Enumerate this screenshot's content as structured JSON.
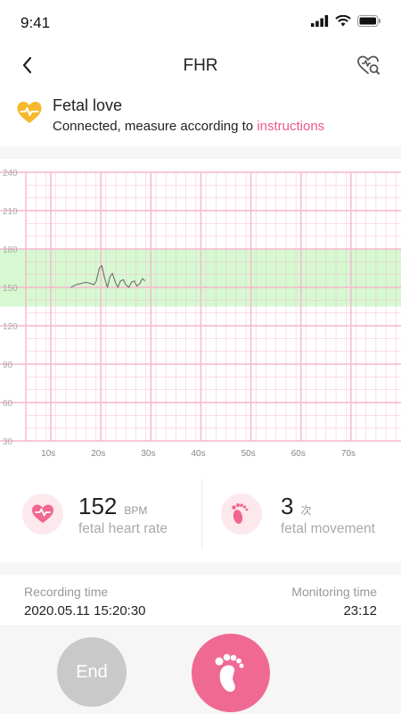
{
  "status_bar": {
    "time": "9:41"
  },
  "nav": {
    "title": "FHR"
  },
  "device": {
    "name": "Fetal love",
    "status_prefix": "Connected, measure according to ",
    "status_link": "instructions"
  },
  "chart_data": {
    "type": "line",
    "y_ticks": [
      240,
      210,
      180,
      150,
      120,
      90,
      60,
      30
    ],
    "x_ticks": [
      "10s",
      "20s",
      "30s",
      "40s",
      "50s",
      "60s",
      "70s"
    ],
    "ylim": [
      30,
      240
    ],
    "normal_band": [
      135,
      180
    ],
    "series": [
      {
        "x": [
          14,
          15,
          16,
          17,
          18,
          18.6,
          19.1,
          19.7,
          20.2,
          20.7,
          21.3,
          21.8,
          22.3,
          22.9,
          23.4,
          23.9,
          24.5,
          25.0,
          25.6,
          26.1,
          26.7,
          27.2,
          27.8,
          28.3,
          28.8
        ],
        "y": [
          150,
          152,
          153,
          154,
          153,
          152,
          155,
          165,
          167,
          158,
          150,
          158,
          161,
          154,
          150,
          155,
          156,
          152,
          150,
          154,
          155,
          151,
          153,
          157,
          155
        ]
      }
    ],
    "colors": {
      "grid": "#f7b6cc",
      "band": "#d6f9d2",
      "line": "#777777"
    }
  },
  "stats": {
    "heart": {
      "value": "152",
      "unit": "BPM",
      "label": "fetal heart rate"
    },
    "movement": {
      "value": "3",
      "unit": "次",
      "label": "fetal movement"
    }
  },
  "recording": {
    "recording_label": "Recording time",
    "recording_value": "2020.05.11   15:20:30",
    "monitoring_label": "Monitoring time",
    "monitoring_value": "23:12"
  },
  "controls": {
    "end_label": "End"
  },
  "icons": {
    "back": "chevron-left-icon",
    "heart_search": "heart-search-icon",
    "device": "heart-pulse-icon",
    "feet": "footprint-icon"
  },
  "accent": "#ef6993"
}
